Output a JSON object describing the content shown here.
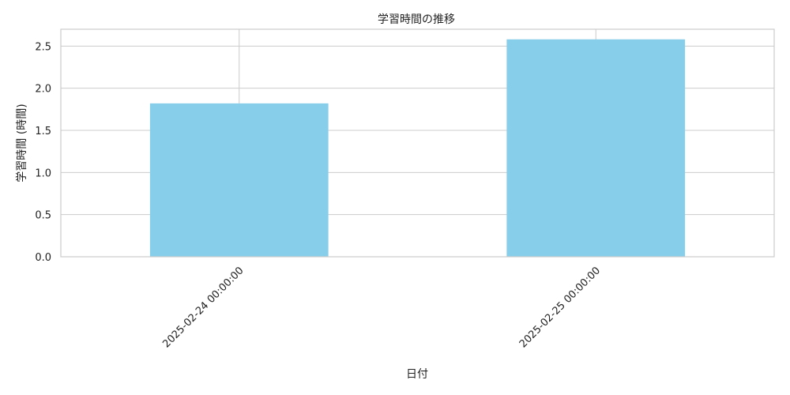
{
  "chart_data": {
    "type": "bar",
    "title": "学習時間の推移",
    "xlabel": "日付",
    "ylabel": "学習時間 (時間)",
    "categories": [
      "2025-02-24 00:00:00",
      "2025-02-25 00:00:00"
    ],
    "values": [
      1.82,
      2.58
    ],
    "ylim": [
      0,
      2.7
    ],
    "yticks": [
      "0.0",
      "0.5",
      "1.0",
      "1.5",
      "2.0",
      "2.5"
    ],
    "grid": true,
    "bar_color": "#87ceeb"
  }
}
